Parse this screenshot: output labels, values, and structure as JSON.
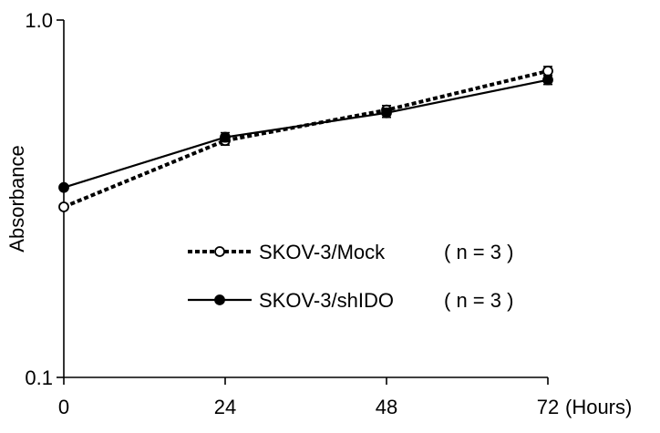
{
  "chart_data": {
    "type": "line",
    "title": "",
    "xlabel": "",
    "ylabel": "Absorbance",
    "x_unit_label": "(Hours)",
    "x": [
      0,
      24,
      48,
      72
    ],
    "x_ticks": [
      0,
      24,
      48,
      72
    ],
    "x_tick_labels": [
      "0",
      "24",
      "48",
      "72"
    ],
    "xlim": [
      0,
      72
    ],
    "yscale": "log",
    "ylim": [
      0.1,
      1.0
    ],
    "y_ticks": [
      0.1,
      1.0
    ],
    "y_tick_labels": [
      "0.1",
      "1.0"
    ],
    "grid": false,
    "legend_position": "center-right",
    "series": [
      {
        "name": "SKOV-3/Mock",
        "n_label": "( n = 3 )",
        "values": [
          0.3,
          0.46,
          0.56,
          0.72
        ],
        "line_style": "dashed",
        "marker": "open-circle",
        "color": "#000000"
      },
      {
        "name": "SKOV-3/shIDO",
        "n_label": "( n = 3 )",
        "values": [
          0.34,
          0.47,
          0.55,
          0.68
        ],
        "line_style": "solid",
        "marker": "filled-circle",
        "color": "#000000"
      }
    ]
  }
}
